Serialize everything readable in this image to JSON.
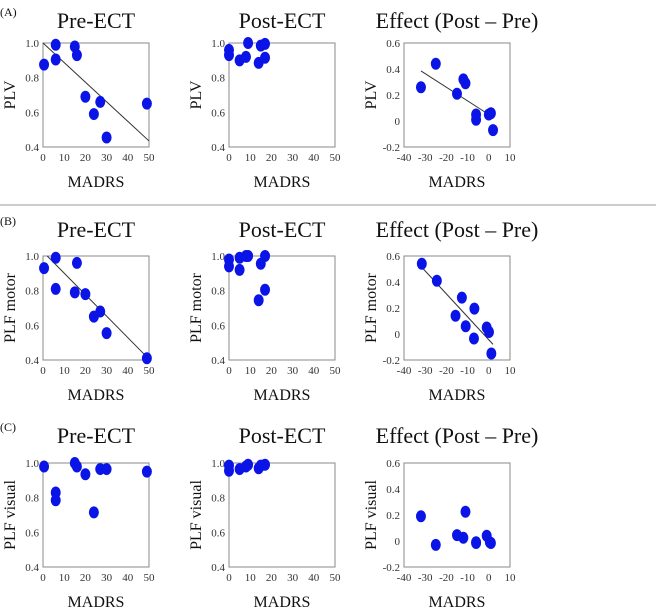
{
  "chart_data": [
    {
      "panel": "(A)",
      "type": "scatter",
      "title": "Pre-ECT",
      "xlabel": "MADRS",
      "ylabel": "PLV",
      "xlim": [
        0,
        50
      ],
      "ylim": [
        0.4,
        1.0
      ],
      "xticks": [
        "0",
        "10",
        "20",
        "30",
        "40",
        "50"
      ],
      "yticks": [
        "0.4",
        "0.6",
        "0.8",
        "1.0"
      ],
      "grid": false,
      "marker_color": "#0a14e6",
      "x": [
        0.5,
        6,
        6,
        15,
        16,
        20,
        24,
        27,
        30,
        49
      ],
      "y": [
        0.875,
        0.99,
        0.905,
        0.98,
        0.93,
        0.69,
        0.59,
        0.66,
        0.455,
        0.65
      ],
      "fit_line": {
        "x": [
          0,
          50
        ],
        "y": [
          1.0,
          0.435
        ]
      }
    },
    {
      "panel": "",
      "type": "scatter",
      "title": "Post-ECT",
      "xlabel": "MADRS",
      "ylabel": "PLV",
      "xlim": [
        0,
        50
      ],
      "ylim": [
        0.4,
        1.0
      ],
      "xticks": [
        "0",
        "10",
        "20",
        "30",
        "40",
        "50"
      ],
      "yticks": [
        "0.4",
        "0.6",
        "0.8",
        "1.0"
      ],
      "grid": false,
      "marker_color": "#0a14e6",
      "x": [
        0,
        0,
        5,
        8,
        9,
        14,
        15,
        17,
        17
      ],
      "y": [
        0.96,
        0.93,
        0.9,
        0.92,
        1.0,
        0.885,
        0.985,
        0.995,
        0.915
      ]
    },
    {
      "panel": "",
      "type": "scatter",
      "title": "Effect (Post – Pre)",
      "xlabel": "MADRS",
      "ylabel": "PLV",
      "xlim": [
        -40,
        10
      ],
      "ylim": [
        -0.2,
        0.6
      ],
      "xticks": [
        "-40",
        "-30",
        "-20",
        "-10",
        "0",
        "10"
      ],
      "yticks": [
        "-0.2",
        "0",
        "0.2",
        "0.4",
        "0.6"
      ],
      "grid": false,
      "marker_color": "#0a14e6",
      "x": [
        -32,
        -25,
        -15,
        -12,
        -11,
        -6,
        -6,
        0,
        1,
        2
      ],
      "y": [
        0.26,
        0.44,
        0.21,
        0.32,
        0.29,
        0.05,
        0.01,
        0.05,
        0.06,
        -0.07
      ],
      "fit_line": {
        "x": [
          -32,
          0
        ],
        "y": [
          0.385,
          0.05
        ]
      }
    },
    {
      "panel": "(B)",
      "type": "scatter",
      "title": "Pre-ECT",
      "xlabel": "MADRS",
      "ylabel": "PLF motor",
      "xlim": [
        0,
        50
      ],
      "ylim": [
        0.4,
        1.0
      ],
      "xticks": [
        "0",
        "10",
        "20",
        "30",
        "40",
        "50"
      ],
      "yticks": [
        "0.4",
        "0.6",
        "0.8",
        "1.0"
      ],
      "grid": false,
      "marker_color": "#0a14e6",
      "x": [
        0.5,
        6,
        6,
        15,
        16,
        20,
        24,
        27,
        30,
        49
      ],
      "y": [
        0.93,
        0.99,
        0.81,
        0.79,
        0.96,
        0.78,
        0.65,
        0.68,
        0.555,
        0.41
      ],
      "fit_line": {
        "x": [
          2,
          48
        ],
        "y": [
          1.0,
          0.43
        ]
      }
    },
    {
      "panel": "",
      "type": "scatter",
      "title": "Post-ECT",
      "xlabel": "MADRS",
      "ylabel": "PLF motor",
      "xlim": [
        0,
        50
      ],
      "ylim": [
        0.4,
        1.0
      ],
      "xticks": [
        "0",
        "10",
        "20",
        "30",
        "40",
        "50"
      ],
      "yticks": [
        "0.4",
        "0.6",
        "0.8",
        "1.0"
      ],
      "grid": false,
      "marker_color": "#0a14e6",
      "x": [
        0,
        0,
        5,
        5,
        8,
        9,
        14,
        15,
        17,
        17
      ],
      "y": [
        0.98,
        0.94,
        0.99,
        0.92,
        1.0,
        1.0,
        0.745,
        0.955,
        1.0,
        0.805
      ]
    },
    {
      "panel": "",
      "type": "scatter",
      "title": "Effect (Post – Pre)",
      "xlabel": "MADRS",
      "ylabel": "PLF motor",
      "xlim": [
        -40,
        10
      ],
      "ylim": [
        -0.2,
        0.6
      ],
      "xticks": [
        "-40",
        "-30",
        "-20",
        "-10",
        "0",
        "10"
      ],
      "yticks": [
        "-0.2",
        "0",
        "0.2",
        "0.4",
        "0.6"
      ],
      "grid": false,
      "marker_color": "#0a14e6",
      "x": [
        -31.6,
        -24.5,
        -15.7,
        -12.7,
        -10.9,
        -6.8,
        -7,
        -1,
        0.1,
        1.2
      ],
      "y": [
        0.54,
        0.41,
        0.14,
        0.28,
        0.06,
        0.195,
        -0.035,
        0.05,
        0.015,
        -0.15
      ],
      "fit_line": {
        "x": [
          -32,
          2
        ],
        "y": [
          0.52,
          -0.08
        ]
      }
    },
    {
      "panel": "(C)",
      "type": "scatter",
      "title": "Pre-ECT",
      "xlabel": "MADRS",
      "ylabel": "PLF visual",
      "xlim": [
        0,
        50
      ],
      "ylim": [
        0.4,
        1.0
      ],
      "xticks": [
        "0",
        "10",
        "20",
        "30",
        "40",
        "50"
      ],
      "yticks": [
        "0.4",
        "0.6",
        "0.8",
        "1.0"
      ],
      "grid": false,
      "marker_color": "#0a14e6",
      "x": [
        0.5,
        6,
        6,
        15,
        16,
        20,
        24,
        27,
        30,
        49
      ],
      "y": [
        0.98,
        0.83,
        0.785,
        1.0,
        0.98,
        0.935,
        0.715,
        0.965,
        0.965,
        0.95
      ]
    },
    {
      "panel": "",
      "type": "scatter",
      "title": "Post-ECT",
      "xlabel": "MADRS",
      "ylabel": "PLF visual",
      "xlim": [
        0,
        50
      ],
      "ylim": [
        0.4,
        1.0
      ],
      "xticks": [
        "0",
        "10",
        "20",
        "30",
        "40",
        "50"
      ],
      "yticks": [
        "0.4",
        "0.6",
        "0.8",
        "1.0"
      ],
      "grid": false,
      "marker_color": "#0a14e6",
      "x": [
        0,
        0,
        5,
        8,
        9,
        14,
        15,
        17
      ],
      "y": [
        0.985,
        0.955,
        0.965,
        0.98,
        0.99,
        0.97,
        0.985,
        0.99
      ]
    },
    {
      "panel": "",
      "type": "scatter",
      "title": "Effect (Post – Pre)",
      "xlabel": "MADRS",
      "ylabel": "PLF visual",
      "xlim": [
        -40,
        10
      ],
      "ylim": [
        -0.2,
        0.6
      ],
      "xticks": [
        "-40",
        "-30",
        "-20",
        "-10",
        "0",
        "10"
      ],
      "yticks": [
        "-0.2",
        "0",
        "0.2",
        "0.4",
        "0.6"
      ],
      "grid": false,
      "marker_color": "#0a14e6",
      "x": [
        -32,
        -25,
        -15,
        -12,
        -11,
        -6,
        -6,
        -1,
        0.5,
        1
      ],
      "y": [
        0.19,
        -0.03,
        0.045,
        0.025,
        0.225,
        -0.015,
        -0.01,
        0.04,
        -0.01,
        -0.015
      ]
    }
  ]
}
